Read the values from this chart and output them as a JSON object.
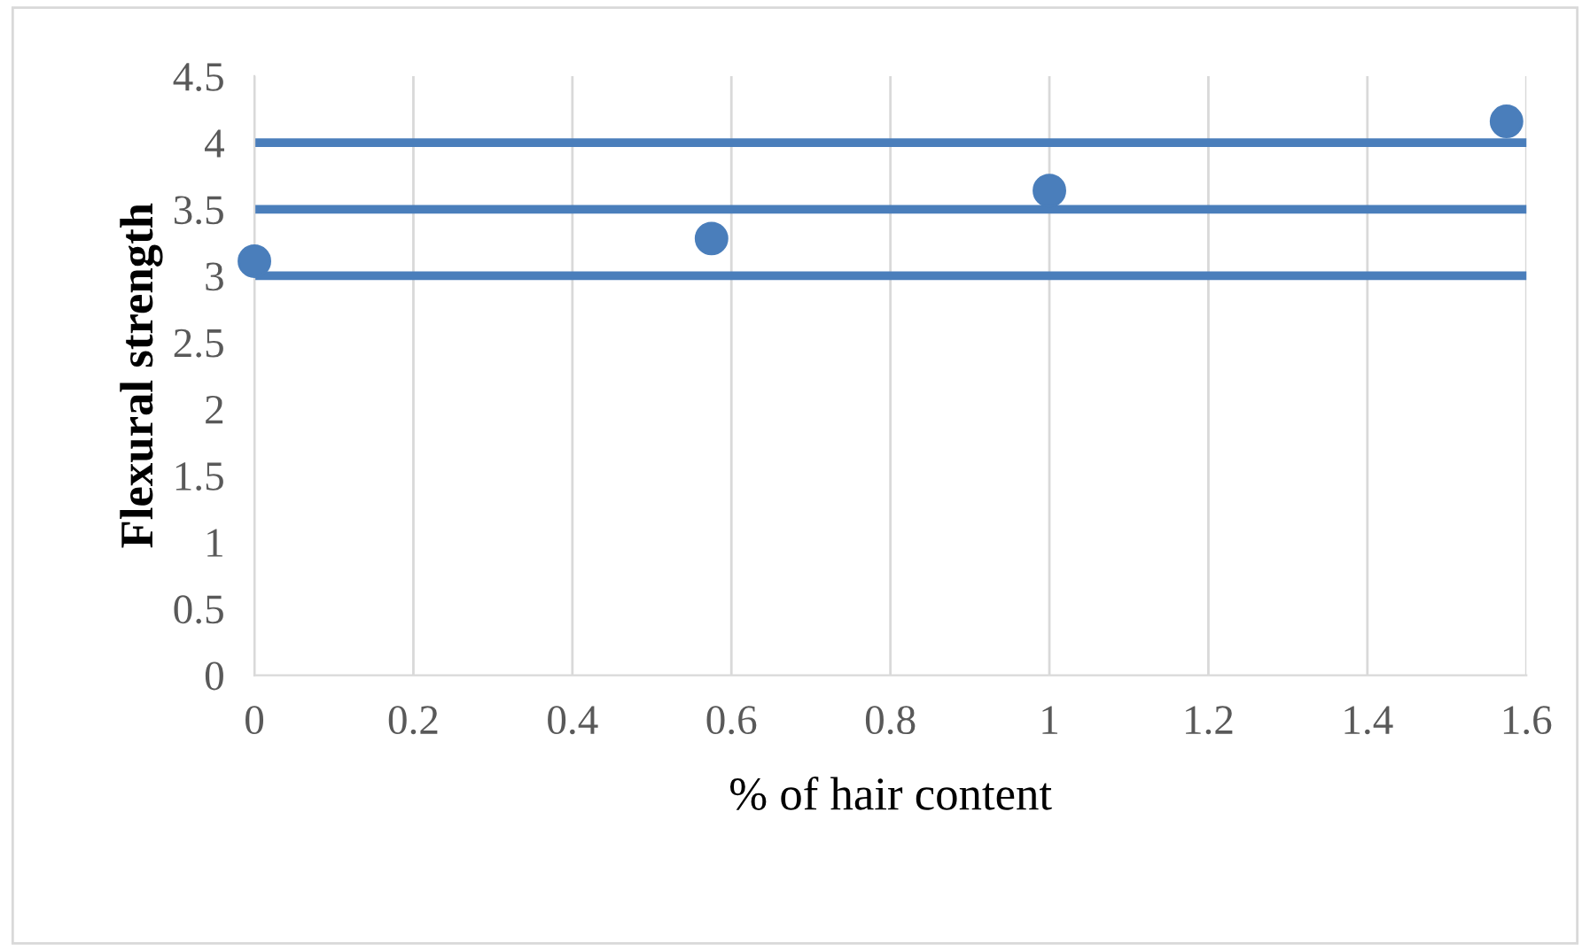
{
  "chart_data": {
    "type": "scatter",
    "xlabel": "% of hair content",
    "ylabel": "Flexural strength",
    "x": [
      0,
      0.575,
      1.0,
      1.575
    ],
    "series": [
      {
        "color": "#4a7ebb",
        "values": [
          3.11,
          3.28,
          3.64,
          4.16
        ]
      }
    ],
    "xlim": [
      0,
      1.6
    ],
    "xticks": [
      0,
      0.2,
      0.4,
      0.6,
      0.8,
      1,
      1.2,
      1.4,
      1.6
    ],
    "ylim": [
      0,
      4.5
    ],
    "yticks": [
      0,
      0.5,
      1,
      1.5,
      2,
      2.5,
      3,
      3.5,
      4,
      4.5
    ],
    "grid": "x",
    "marker": "circle",
    "ref_lines": [
      {
        "axis": "y",
        "value": 4.0,
        "color": "#4a7ebb",
        "line_style": "solid"
      },
      {
        "axis": "y",
        "value": 3.5,
        "color": "#4a7ebb",
        "line_style": "solid"
      },
      {
        "axis": "y",
        "value": 3.0,
        "color": "#4a7ebb",
        "line_style": "solid"
      }
    ]
  }
}
